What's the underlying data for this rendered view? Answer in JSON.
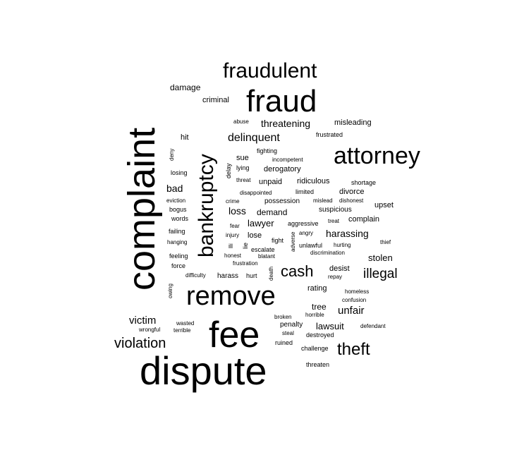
{
  "cloud": {
    "words": [
      {
        "text": "dispute"
      },
      {
        "text": "complaint"
      },
      {
        "text": "fee"
      },
      {
        "text": "fraud"
      },
      {
        "text": "remove"
      },
      {
        "text": "attorney"
      },
      {
        "text": "fraudulent"
      },
      {
        "text": "bankruptcy"
      },
      {
        "text": "theft"
      },
      {
        "text": "cash"
      },
      {
        "text": "violation"
      },
      {
        "text": "illegal"
      },
      {
        "text": "delinquent"
      },
      {
        "text": "threatening"
      },
      {
        "text": "victim"
      },
      {
        "text": "unfair"
      },
      {
        "text": "harassing"
      },
      {
        "text": "lawsuit"
      },
      {
        "text": "stolen"
      },
      {
        "text": "bad"
      },
      {
        "text": "loss"
      },
      {
        "text": "lawyer"
      },
      {
        "text": "damage"
      },
      {
        "text": "demand"
      },
      {
        "text": "tree"
      },
      {
        "text": "rating"
      },
      {
        "text": "desist"
      },
      {
        "text": "derogatory"
      },
      {
        "text": "unpaid"
      },
      {
        "text": "ridiculous"
      },
      {
        "text": "divorce"
      },
      {
        "text": "complain"
      },
      {
        "text": "upset"
      },
      {
        "text": "misleading"
      },
      {
        "text": "criminal"
      },
      {
        "text": "sue"
      },
      {
        "text": "lose"
      },
      {
        "text": "hit"
      },
      {
        "text": "possession"
      },
      {
        "text": "suspicious"
      },
      {
        "text": "penalty"
      },
      {
        "text": "destroyed"
      },
      {
        "text": "ruined"
      },
      {
        "text": "challenge"
      },
      {
        "text": "threaten"
      },
      {
        "text": "harass"
      },
      {
        "text": "hurt"
      },
      {
        "text": "escalate"
      },
      {
        "text": "frustrated"
      },
      {
        "text": "fighting"
      },
      {
        "text": "incompetent"
      },
      {
        "text": "lying"
      },
      {
        "text": "abuse"
      },
      {
        "text": "threat"
      },
      {
        "text": "disappointed"
      },
      {
        "text": "limited"
      },
      {
        "text": "mislead"
      },
      {
        "text": "dishonest"
      },
      {
        "text": "shortage"
      },
      {
        "text": "crime"
      },
      {
        "text": "aggressive"
      },
      {
        "text": "treat"
      },
      {
        "text": "fear"
      },
      {
        "text": "injury"
      },
      {
        "text": "angry"
      },
      {
        "text": "fight"
      },
      {
        "text": "unlawful"
      },
      {
        "text": "hurting"
      },
      {
        "text": "ill"
      },
      {
        "text": "honest"
      },
      {
        "text": "blatant"
      },
      {
        "text": "discrimination"
      },
      {
        "text": "frustration"
      },
      {
        "text": "repay"
      },
      {
        "text": "homeless"
      },
      {
        "text": "confusion"
      },
      {
        "text": "horrible"
      },
      {
        "text": "broken"
      },
      {
        "text": "defendant"
      },
      {
        "text": "steal"
      },
      {
        "text": "thief"
      },
      {
        "text": "losing"
      },
      {
        "text": "eviction"
      },
      {
        "text": "bogus"
      },
      {
        "text": "words"
      },
      {
        "text": "failing"
      },
      {
        "text": "hanging"
      },
      {
        "text": "feeling"
      },
      {
        "text": "force"
      },
      {
        "text": "difficulty"
      },
      {
        "text": "wasted"
      },
      {
        "text": "wrongful"
      },
      {
        "text": "terrible"
      },
      {
        "text": "deny"
      },
      {
        "text": "delay"
      },
      {
        "text": "lie"
      },
      {
        "text": "adverse"
      },
      {
        "text": "death"
      },
      {
        "text": "owing"
      }
    ]
  }
}
